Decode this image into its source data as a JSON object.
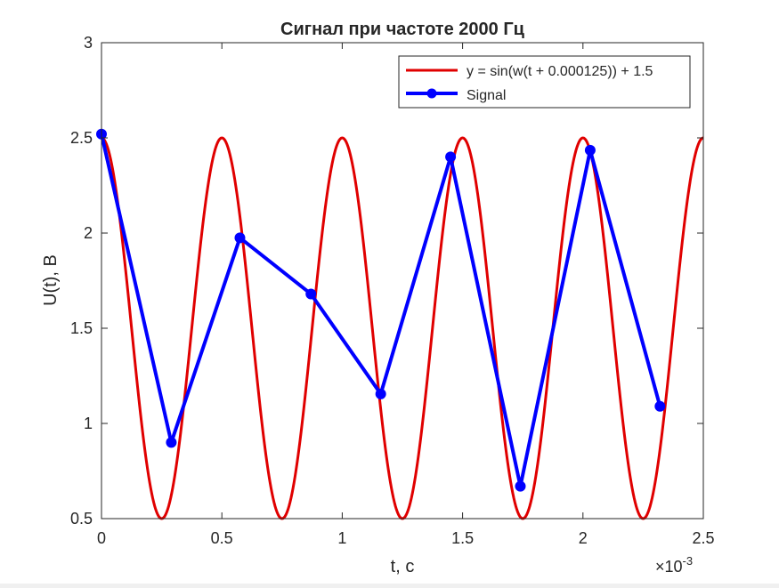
{
  "chart_data": {
    "type": "line",
    "title": "Сигнал при частоте 2000 Гц",
    "xlabel": "t, с",
    "ylabel": "U(t), В",
    "x_exponent_label": "×10",
    "x_exponent_power": "-3",
    "xlim": [
      0,
      0.0025
    ],
    "ylim": [
      0.5,
      3
    ],
    "x_ticks": [
      0,
      0.0005,
      0.001,
      0.0015,
      0.002,
      0.0025
    ],
    "x_tick_labels": [
      "0",
      "0.5",
      "1",
      "1.5",
      "2",
      "2.5"
    ],
    "y_ticks": [
      0.5,
      1,
      1.5,
      2,
      2.5,
      3
    ],
    "y_tick_labels": [
      "0.5",
      "1",
      "1.5",
      "2",
      "2.5",
      "3"
    ],
    "grid": false,
    "legend_position": "top-right",
    "series": [
      {
        "name": "y = sin(w(t + 0.000125)) + 1.5",
        "kind": "function",
        "color": "#e00000",
        "frequency_hz": 2000,
        "phase_shift_s": 0.000125,
        "offset": 1.5,
        "amplitude": 1
      },
      {
        "name": "Signal",
        "kind": "samples",
        "color": "#0000ff",
        "x": [
          0,
          0.00029,
          0.000575,
          0.00087,
          0.00116,
          0.00145,
          0.00174,
          0.00203,
          0.00232
        ],
        "y": [
          2.52,
          0.9,
          1.975,
          1.68,
          1.155,
          2.4,
          0.67,
          2.435,
          1.09
        ]
      }
    ]
  }
}
